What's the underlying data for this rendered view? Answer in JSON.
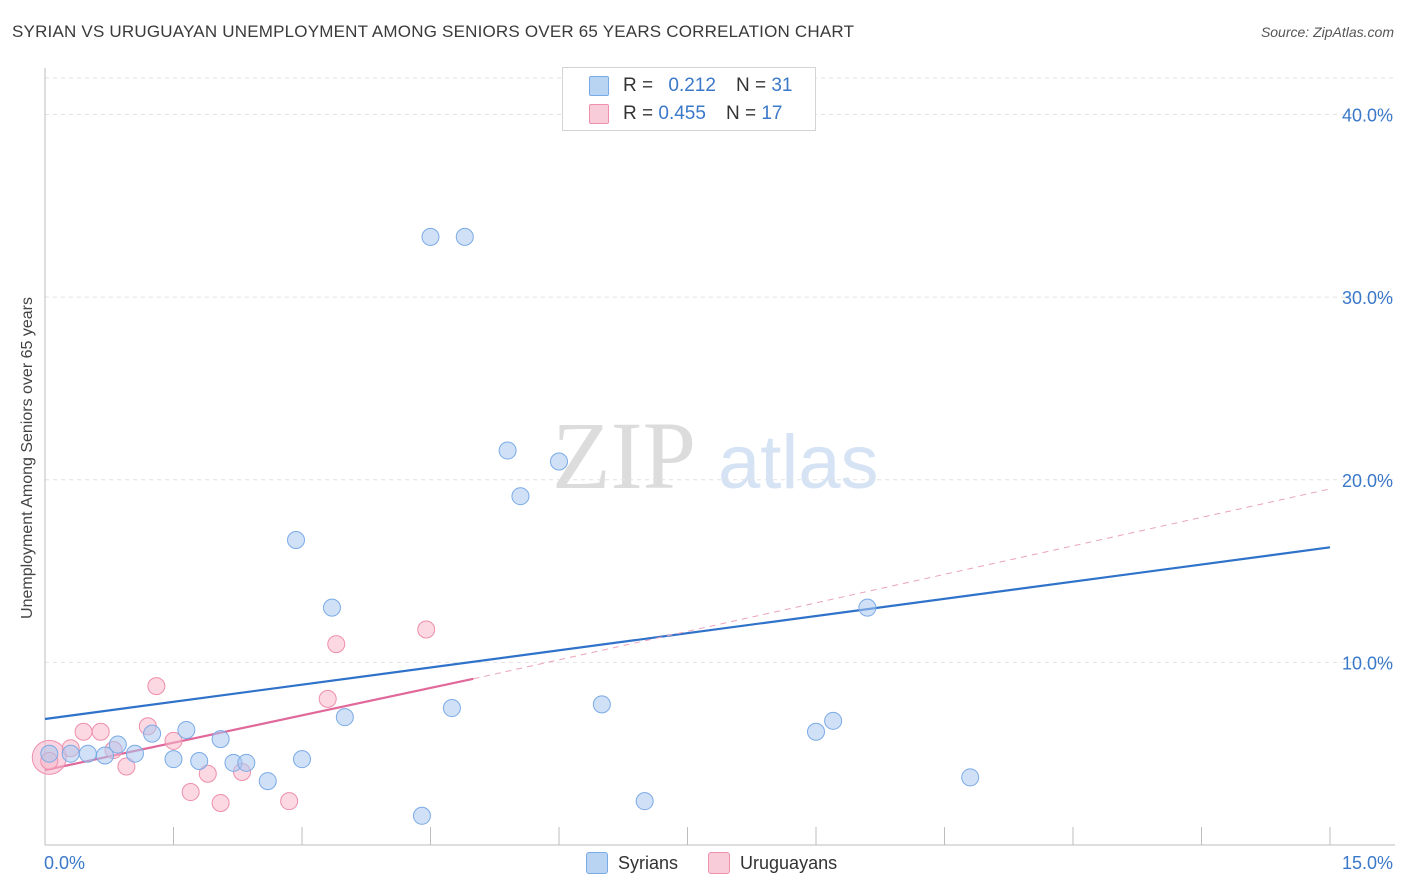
{
  "title": "SYRIAN VS URUGUAYAN UNEMPLOYMENT AMONG SENIORS OVER 65 YEARS CORRELATION CHART",
  "source": "Source: ZipAtlas.com",
  "watermark": {
    "zip": "ZIP",
    "atlas": "atlas"
  },
  "legend": {
    "syrians": {
      "r_label": "R =",
      "r_value": "0.212",
      "n_label": "N =",
      "n_value": "31"
    },
    "uruguayans": {
      "r_label": "R =",
      "r_value": "0.455",
      "n_label": "N =",
      "n_value": "17"
    }
  },
  "bottom_legend": {
    "syrians": "Syrians",
    "uruguayans": "Uruguayans"
  },
  "colors": {
    "syrian_fill": "#a9c8f0",
    "syrian_stroke": "#7aaae6",
    "syrian_line": "#2f72c9",
    "uruguayan_fill": "#f7b8cb",
    "uruguayan_stroke": "#ee8fac",
    "uruguayan_line": "#e0689a",
    "axis_text": "#3a78c9",
    "grid": "#e2e2e2"
  },
  "chart_data": {
    "type": "scatter",
    "title": "SYRIAN VS URUGUAYAN UNEMPLOYMENT AMONG SENIORS OVER 65 YEARS CORRELATION CHART",
    "xlabel": "",
    "ylabel": "Unemployment Among Seniors over 65 years",
    "xlim": [
      0,
      15
    ],
    "ylim": [
      0,
      42
    ],
    "x_tick_labels": [
      "0.0%",
      "15.0%"
    ],
    "y_ticks": [
      10,
      20,
      30,
      40
    ],
    "y_tick_labels": [
      "10.0%",
      "20.0%",
      "30.0%",
      "40.0%"
    ],
    "series": [
      {
        "name": "Syrians",
        "points": [
          [
            0.05,
            5.0
          ],
          [
            0.3,
            5.0
          ],
          [
            0.5,
            5.0
          ],
          [
            0.7,
            4.9
          ],
          [
            0.85,
            5.5
          ],
          [
            1.05,
            5.0
          ],
          [
            1.25,
            6.1
          ],
          [
            1.5,
            4.7
          ],
          [
            1.65,
            6.3
          ],
          [
            1.8,
            4.6
          ],
          [
            2.05,
            5.8
          ],
          [
            2.2,
            4.5
          ],
          [
            2.35,
            4.5
          ],
          [
            2.6,
            3.5
          ],
          [
            3.0,
            4.7
          ],
          [
            2.93,
            16.7
          ],
          [
            3.35,
            13.0
          ],
          [
            3.5,
            7.0
          ],
          [
            4.5,
            33.3
          ],
          [
            4.9,
            33.3
          ],
          [
            4.4,
            1.6
          ],
          [
            4.75,
            7.5
          ],
          [
            5.4,
            21.6
          ],
          [
            5.55,
            19.1
          ],
          [
            6.0,
            21.0
          ],
          [
            6.5,
            7.7
          ],
          [
            7.0,
            2.4
          ],
          [
            9.0,
            6.2
          ],
          [
            9.2,
            6.8
          ],
          [
            9.6,
            13.0
          ],
          [
            10.8,
            3.7
          ]
        ],
        "trend": {
          "x": [
            0,
            15
          ],
          "y": [
            6.9,
            16.3
          ]
        }
      },
      {
        "name": "Uruguayans",
        "points": [
          [
            0.05,
            4.6
          ],
          [
            0.3,
            5.3
          ],
          [
            0.45,
            6.2
          ],
          [
            0.65,
            6.2
          ],
          [
            0.8,
            5.2
          ],
          [
            0.95,
            4.3
          ],
          [
            1.2,
            6.5
          ],
          [
            1.3,
            8.7
          ],
          [
            1.5,
            5.7
          ],
          [
            1.7,
            2.9
          ],
          [
            1.9,
            3.9
          ],
          [
            2.05,
            2.3
          ],
          [
            2.3,
            4.0
          ],
          [
            2.85,
            2.4
          ],
          [
            3.3,
            8.0
          ],
          [
            3.4,
            11.0
          ],
          [
            4.45,
            11.8
          ]
        ],
        "trend": {
          "x": [
            0,
            5.0
          ],
          "y": [
            4.1,
            9.1
          ]
        },
        "trend_extended": {
          "x": [
            5.0,
            15
          ],
          "y": [
            9.1,
            19.5
          ]
        }
      }
    ]
  }
}
